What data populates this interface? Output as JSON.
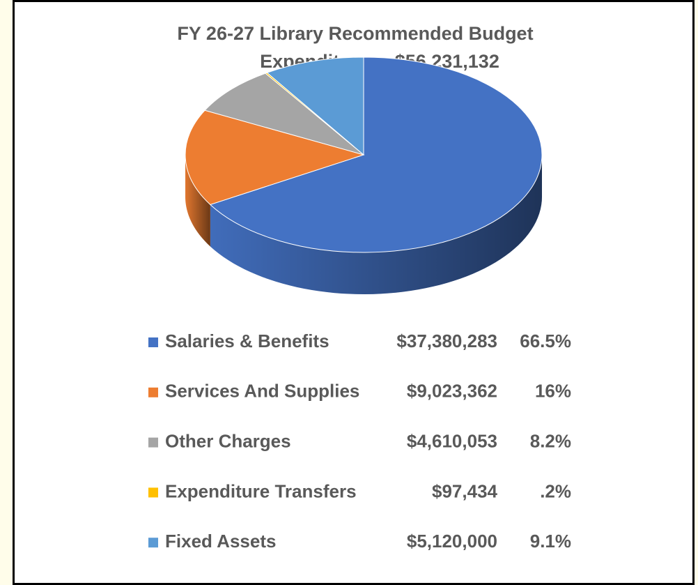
{
  "chart_data": {
    "type": "pie3d",
    "title": "FY 26-27 Library Recommended Budget",
    "subtitle": "Expenditures   $56,231,132",
    "categories": [
      "Salaries & Benefits",
      "Services And Supplies",
      "Other Charges",
      "Expenditure Transfers",
      "Fixed Assets"
    ],
    "values": [
      37380283,
      9023362,
      4610053,
      97434,
      5120000
    ],
    "value_labels": [
      "$37,380,283",
      "$9,023,362",
      "$4,610,053",
      "$97,434",
      "$5,120,000"
    ],
    "percents": [
      66.5,
      16,
      8.2,
      0.2,
      9.1
    ],
    "percent_labels": [
      "66.5%",
      "16%",
      "8.2%",
      ".2%",
      "9.1%"
    ],
    "colors": [
      "#4472c4",
      "#ed7d31",
      "#a5a5a5",
      "#ffc000",
      "#5b9bd5"
    ]
  }
}
